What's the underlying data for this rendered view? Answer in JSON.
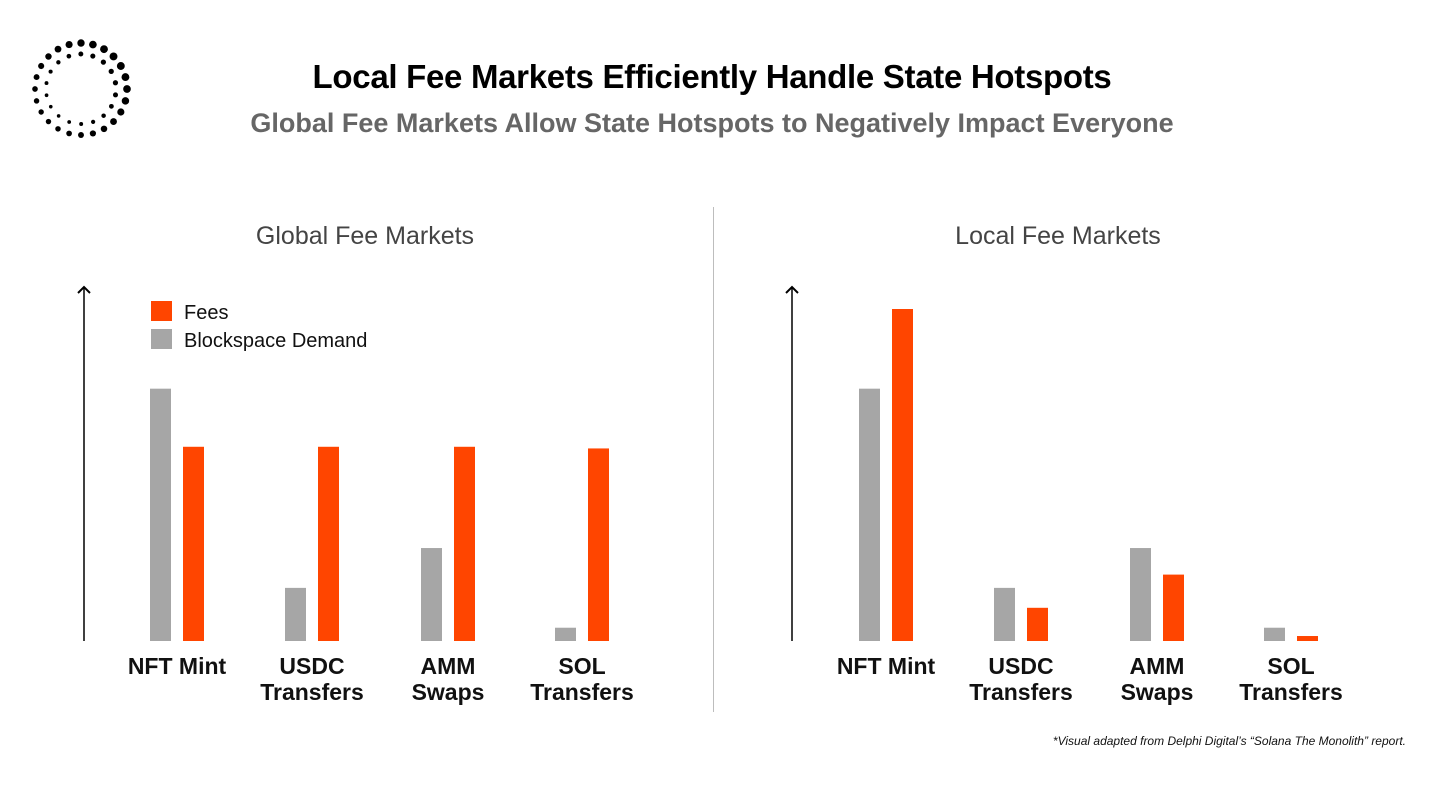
{
  "header": {
    "title": "Local Fee Markets Efficiently Handle State Hotspots",
    "subtitle": "Global Fee Markets Allow State Hotspots to Negatively Impact Everyone"
  },
  "logo_icon": "dotted-ring-icon",
  "footnote": "*Visual adapted from Delphi Digital’s “Solana The Monolith” report.",
  "colors": {
    "fees": "#ff4500",
    "demand": "#a6a6a6"
  },
  "chart_data": [
    {
      "type": "bar",
      "title": "Global Fee Markets",
      "categories": [
        "NFT Mint",
        "USDC Transfers",
        "AMM Swaps",
        "SOL Transfers"
      ],
      "category_lines": [
        [
          "NFT Mint"
        ],
        [
          "USDC",
          "Transfers"
        ],
        [
          "AMM",
          "Swaps"
        ],
        [
          "SOL",
          "Transfers"
        ]
      ],
      "series": [
        {
          "name": "Blockspace Demand",
          "values": [
            0.76,
            0.16,
            0.28,
            0.04
          ]
        },
        {
          "name": "Fees",
          "values": [
            0.585,
            0.585,
            0.585,
            0.58
          ]
        }
      ],
      "ylim": [
        0,
        1
      ],
      "legend": {
        "position": "top-left",
        "entries": [
          "Fees",
          "Blockspace Demand"
        ]
      }
    },
    {
      "type": "bar",
      "title": "Local Fee Markets",
      "categories": [
        "NFT Mint",
        "USDC Transfers",
        "AMM Swaps",
        "SOL Transfers"
      ],
      "category_lines": [
        [
          "NFT Mint"
        ],
        [
          "USDC",
          "Transfers"
        ],
        [
          "AMM",
          "Swaps"
        ],
        [
          "SOL",
          "Transfers"
        ]
      ],
      "series": [
        {
          "name": "Blockspace Demand",
          "values": [
            0.76,
            0.16,
            0.28,
            0.04
          ]
        },
        {
          "name": "Fees",
          "values": [
            1.0,
            0.1,
            0.2,
            0.015
          ]
        }
      ],
      "ylim": [
        0,
        1
      ]
    }
  ]
}
